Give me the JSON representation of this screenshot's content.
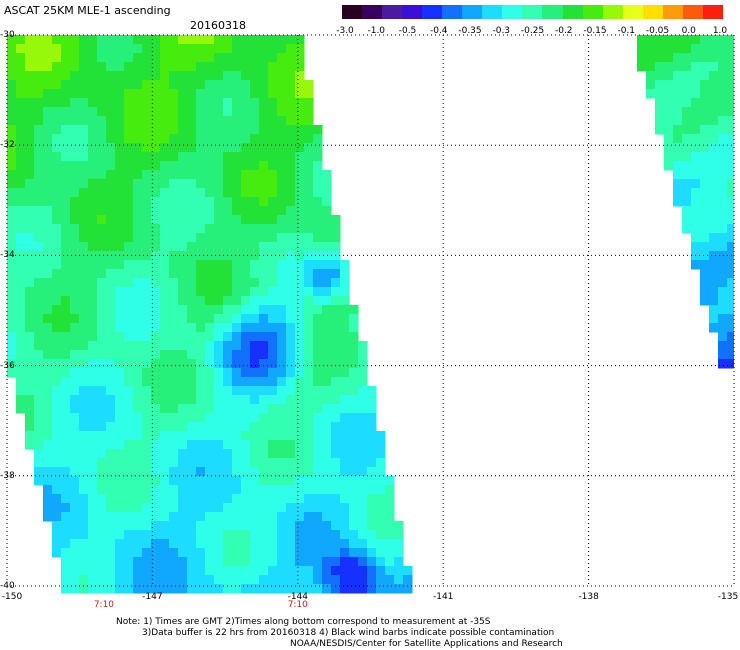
{
  "header": {
    "title": "ASCAT 25KM MLE-1 ascending",
    "date": "20160318"
  },
  "colorbar": {
    "colors": [
      "#2a001f",
      "#3a0060",
      "#4b1aa0",
      "#3a10d8",
      "#1530ff",
      "#1270ff",
      "#10a8ff",
      "#1cdcff",
      "#2effe6",
      "#33ffb3",
      "#27f07a",
      "#22e238",
      "#46ec0d",
      "#98f80a",
      "#e8ff1a",
      "#ffdf00",
      "#ff9a0a",
      "#ff5a0c",
      "#ff1e0e"
    ],
    "labels": [
      "-3.0",
      "-1.0",
      "-0.5",
      "-0.4",
      "-0.35",
      "-0.3",
      "-0.25",
      "-0.2",
      "-0.15",
      "-0.1",
      "-0.05",
      "0.0",
      "1.0"
    ]
  },
  "axes": {
    "lat_labels": [
      "-30",
      "-32",
      "-34",
      "-36",
      "-38",
      "-40"
    ],
    "lat_values": [
      -30,
      -32,
      -34,
      -36,
      -38,
      -40
    ],
    "lon_labels": [
      "-150",
      "-147",
      "-144",
      "-141",
      "-138",
      "-135"
    ],
    "lon_values": [
      -150,
      -147,
      -144,
      -141,
      -138,
      -135
    ],
    "time_labels": [
      "7:10",
      "7:10"
    ],
    "time_lons": [
      -148,
      -144
    ]
  },
  "notes": [
    "Note: 1) Times are GMT 2)Times along bottom correspond to measurement at -35S",
    "3)Data buffer is 22 hrs from 20160318 4) Black wind barbs indicate possible contamination",
    "NOAA/NESDIS/Center for Satellite Applications and Research"
  ]
}
